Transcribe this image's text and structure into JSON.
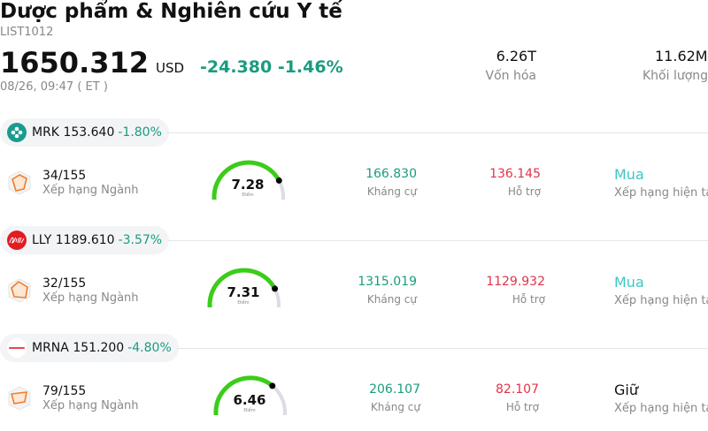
{
  "header": {
    "title": "Dược phẩm & Nghiên cứu Y tế",
    "code": "LIST1012",
    "price": "1650.312",
    "currency": "USD",
    "change": "-24.380 -1.46%",
    "time": "08/26, 09:47 ( ET )",
    "stats": [
      {
        "value": "6.26T",
        "label": "Vốn hóa"
      },
      {
        "value": "11.62M",
        "label": "Khối lượng"
      }
    ]
  },
  "stocks": [
    {
      "ticker": "MRK",
      "price": "153.640",
      "change": "-1.80%",
      "rank": "34/155",
      "rank_label": "Xếp hạng Ngành",
      "score": "7.28",
      "score_value": 7.28,
      "score_label": "Điểm",
      "resistance": "166.830",
      "resistance_label": "Kháng cự",
      "support": "136.145",
      "support_label": "Hỗ trợ",
      "rating": "Mua",
      "rating_label": "Xếp hạng hiện tại",
      "logo_color": "#1a9b8f"
    },
    {
      "ticker": "LLY",
      "price": "1189.610",
      "change": "-3.57%",
      "rank": "32/155",
      "rank_label": "Xếp hạng Ngành",
      "score": "7.31",
      "score_value": 7.31,
      "score_label": "Điểm",
      "resistance": "1315.019",
      "resistance_label": "Kháng cự",
      "support": "1129.932",
      "support_label": "Hỗ trợ",
      "rating": "Mua",
      "rating_label": "Xếp hạng hiện tại",
      "logo_color": "#e31b23"
    },
    {
      "ticker": "MRNA",
      "price": "151.200",
      "change": "-4.80%",
      "rank": "79/155",
      "rank_label": "Xếp hạng Ngành",
      "score": "6.46",
      "score_value": 6.46,
      "score_label": "Điểm",
      "resistance": "206.107",
      "resistance_label": "Kháng cự",
      "support": "82.107",
      "support_label": "Hỗ trợ",
      "rating": "Giữ",
      "rating_label": "Xếp hạng hiện tại",
      "logo_color": "#e8464f"
    }
  ],
  "colors": {
    "gauge_fill": "#3ccc1a",
    "gauge_track": "#dcdce6",
    "up_down_green": "#1a9b7f",
    "support_red": "#e0344a",
    "buy_teal": "#3fc6c0"
  }
}
